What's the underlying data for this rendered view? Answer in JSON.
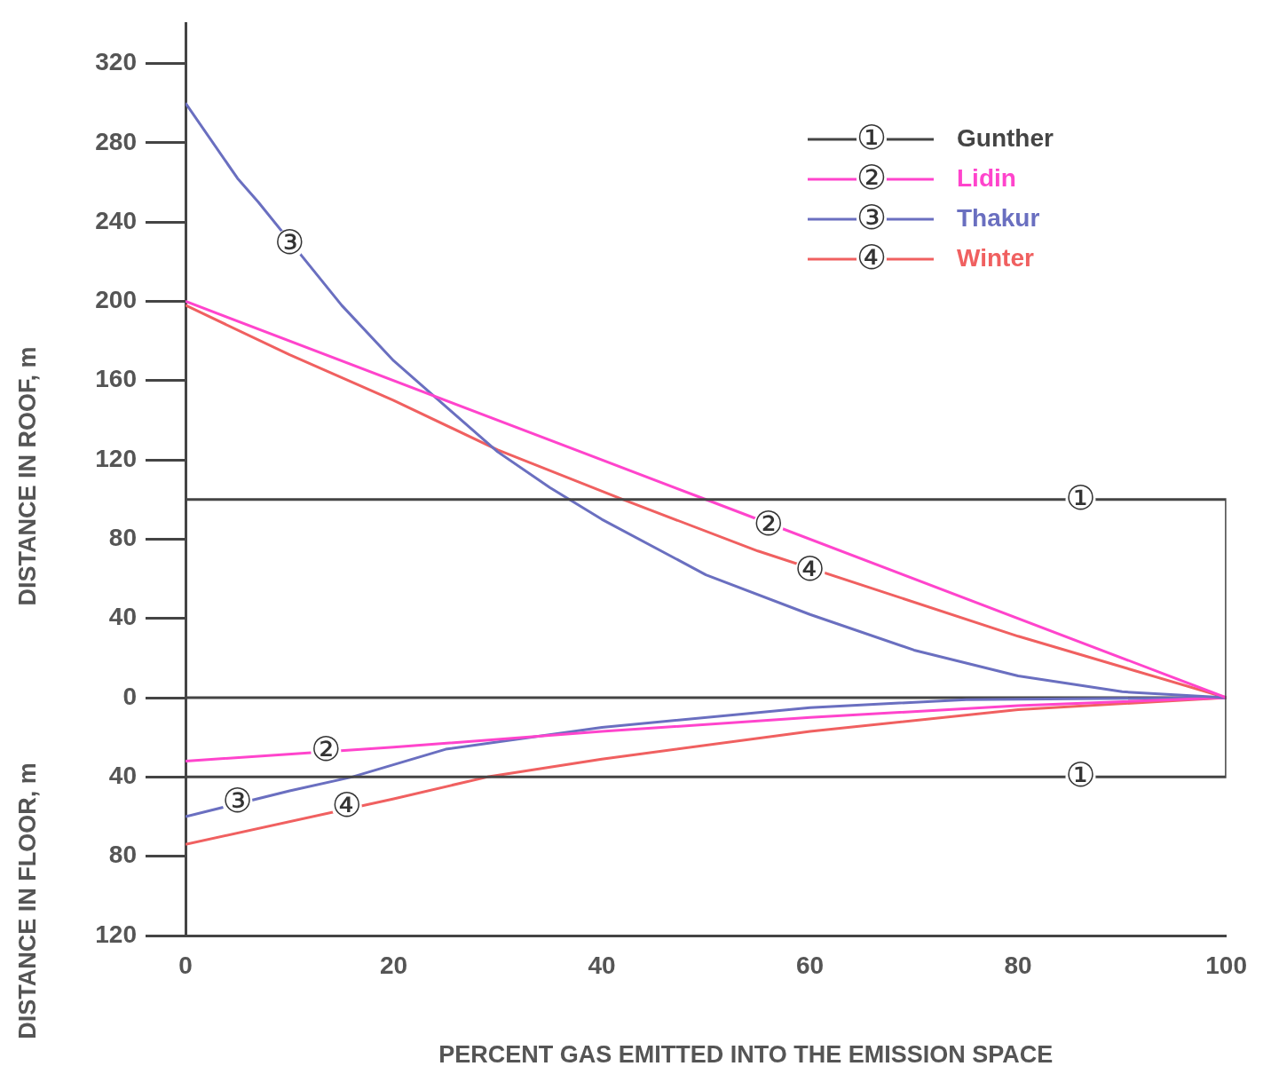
{
  "chart_data": {
    "type": "line",
    "xlabel": "PERCENT GAS EMITTED INTO THE EMISSION SPACE",
    "ylabel": "DISTANCE IN ROOF, m",
    "xlim": [
      0,
      100
    ],
    "xticks": [
      0,
      20,
      40,
      60,
      80,
      100
    ],
    "ylim": [
      -120,
      340
    ],
    "yticks": [
      {
        "value": -120,
        "label": "120"
      },
      {
        "value": -80,
        "label": "80"
      },
      {
        "value": -40,
        "label": "40"
      },
      0,
      40,
      80,
      120,
      160,
      200,
      240,
      280,
      320
    ],
    "legend": "top right",
    "ref_lines": [
      {
        "axis": "y",
        "value": 0,
        "color": "#444444"
      }
    ],
    "series": [
      {
        "name": "Gunther",
        "color": "#444444",
        "x": [
          0,
          100,
          100,
          0
        ],
        "values": [
          100,
          100,
          -40,
          -40
        ]
      },
      {
        "name": "Lidin",
        "color": "#ff44cc",
        "x": [
          0,
          50,
          100
        ],
        "values": [
          200,
          100,
          0
        ]
      },
      {
        "name": "Thakur",
        "color": "#6a6fc0",
        "x": [
          0,
          5,
          7,
          15,
          20,
          25,
          30,
          35,
          40,
          50,
          60,
          70,
          80,
          90,
          100
        ],
        "values": [
          300,
          262,
          250,
          198,
          170,
          147,
          124,
          106,
          90,
          62,
          42,
          24,
          11,
          3,
          0
        ]
      },
      {
        "name": "Winter",
        "color": "#f06060",
        "x": [
          0,
          10,
          20,
          30,
          42,
          55,
          80,
          100
        ],
        "values": [
          198,
          173,
          150,
          125,
          100,
          74,
          31,
          0
        ]
      },
      {
        "color": "#ff44cc",
        "x": [
          0,
          20,
          40,
          60,
          80,
          100
        ],
        "values": [
          -32,
          -25,
          -17,
          -10,
          -4,
          0
        ]
      },
      {
        "color": "#6a6fc0",
        "x": [
          0,
          10,
          16,
          25,
          40,
          60,
          75,
          100
        ],
        "values": [
          -60,
          -47,
          -40,
          -26,
          -15,
          -5,
          -1,
          0
        ]
      },
      {
        "color": "#f06060",
        "x": [
          0,
          20,
          29,
          40,
          60,
          80,
          100
        ],
        "values": [
          -74,
          -51,
          -40,
          -31,
          -17,
          -6,
          0
        ]
      }
    ],
    "annotations": [
      {
        "text": "③",
        "x": 10,
        "y": 229
      },
      {
        "text": "②",
        "x": 56,
        "y": 87
      },
      {
        "text": "④",
        "x": 60,
        "y": 64
      },
      {
        "text": "①",
        "x": 86,
        "y": 100
      },
      {
        "text": "①",
        "x": 86,
        "y": -40
      },
      {
        "text": "②",
        "x": 13.5,
        "y": -27
      },
      {
        "text": "③",
        "x": 5,
        "y": -53
      },
      {
        "text": "④",
        "x": 15.5,
        "y": -55
      },
      "DISTANCE IN FLOOR, m",
      "①",
      "②",
      "③",
      "④"
    ]
  }
}
